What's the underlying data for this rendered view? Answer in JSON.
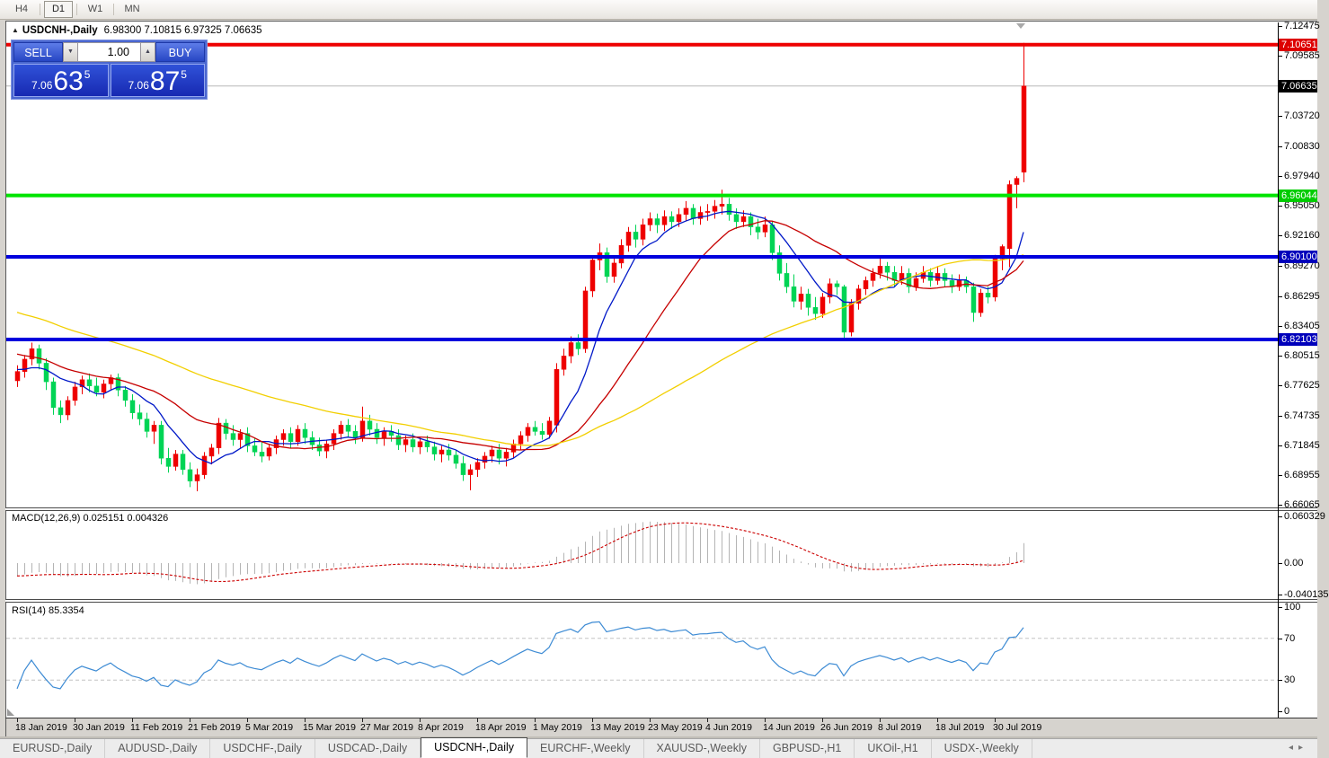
{
  "toolbar": {
    "timeframes": [
      "H4",
      "D1",
      "W1",
      "MN"
    ],
    "active": "D1"
  },
  "chart": {
    "title_symbol": "USDCNH-,Daily",
    "title_ohlc": "6.98300 7.10815 6.97325 7.06635"
  },
  "trade": {
    "sell_label": "SELL",
    "buy_label": "BUY",
    "volume": "1.00",
    "sell_price_small": "7.06",
    "sell_price_big": "63",
    "sell_price_sup": "5",
    "buy_price_small": "7.06",
    "buy_price_big": "87",
    "buy_price_sup": "5"
  },
  "macd": {
    "label": "MACD(12,26,9) 0.025151 0.004326",
    "axis_labels": [
      "0.060329",
      "0.00",
      "-0.040135"
    ]
  },
  "rsi": {
    "label": "RSI(14) 85.3354",
    "axis_labels": [
      "100",
      "70",
      "30",
      "0"
    ]
  },
  "tabs": {
    "items": [
      "EURUSD-,Daily",
      "AUDUSD-,Daily",
      "USDCHF-,Daily",
      "USDCAD-,Daily",
      "USDCNH-,Daily",
      "EURCHF-,Weekly",
      "XAUUSD-,Weekly",
      "GBPUSD-,H1",
      "UKOil-,H1",
      "USDX-,Weekly"
    ],
    "active": "USDCNH-,Daily"
  },
  "chart_data": {
    "type": "candlestick",
    "symbol": "USDCNH-,Daily",
    "bull_color": "#ee0000",
    "bear_color": "#00d455",
    "price_axis_ticks": [
      "7.12475",
      "7.09585",
      "7.03720",
      "7.00830",
      "6.97940",
      "6.95050",
      "6.92160",
      "6.89270",
      "6.86295",
      "6.83405",
      "6.80515",
      "6.77625",
      "6.74735",
      "6.71845",
      "6.68955",
      "6.66065"
    ],
    "price_range_visible": [
      6.6575,
      7.128
    ],
    "current_price": 7.06635,
    "hlines": [
      {
        "price": 7.10651,
        "color": "#ee0000",
        "label": "7.10651",
        "badge_bg": "#dd0000"
      },
      {
        "price": 6.96044,
        "color": "#00e400",
        "label": "6.96044",
        "badge_bg": "#00cc00"
      },
      {
        "price": 6.901,
        "color": "#0000dd",
        "label": "6.90100",
        "badge_bg": "#0000bb"
      },
      {
        "price": 6.82103,
        "color": "#0000dd",
        "label": "6.82103",
        "badge_bg": "#0000bb"
      }
    ],
    "current_price_badge_bg": "#000000",
    "moving_averages": [
      {
        "period": 8,
        "color": "#0018c8"
      },
      {
        "period": 21,
        "color": "#c60000"
      },
      {
        "period": 55,
        "color": "#f2cf00"
      }
    ],
    "x_tick_labels": [
      "18 Jan 2019",
      "30 Jan 2019",
      "11 Feb 2019",
      "21 Feb 2019",
      "5 Mar 2019",
      "15 Mar 2019",
      "27 Mar 2019",
      "8 Apr 2019",
      "18 Apr 2019",
      "1 May 2019",
      "13 May 2019",
      "23 May 2019",
      "4 Jun 2019",
      "14 Jun 2019",
      "26 Jun 2019",
      "8 Jul 2019",
      "18 Jul 2019",
      "30 Jul 2019"
    ],
    "x_tick_interval": 8,
    "macd_panel": {
      "params": "12,26,9",
      "current_main": 0.025151,
      "current_signal": 0.004326,
      "axis_max": 0.060329,
      "axis_min": -0.040135,
      "hist_color": "#b4b4b4",
      "signal_color": "#cc0000"
    },
    "rsi_panel": {
      "period": 14,
      "current_value": 85.3354,
      "levels": [
        70,
        30
      ],
      "line_color": "#3d8bd4",
      "axis": [
        100,
        70,
        30,
        0
      ]
    },
    "candles": [
      [
        6.781,
        6.796,
        6.775,
        6.79
      ],
      [
        6.79,
        6.806,
        6.784,
        6.802
      ],
      [
        6.802,
        6.818,
        6.796,
        6.812
      ],
      [
        6.812,
        6.816,
        6.792,
        6.798
      ],
      [
        6.798,
        6.803,
        6.772,
        6.78
      ],
      [
        6.78,
        6.784,
        6.748,
        6.755
      ],
      [
        6.755,
        6.762,
        6.74,
        6.748
      ],
      [
        6.748,
        6.766,
        6.743,
        6.762
      ],
      [
        6.762,
        6.78,
        6.757,
        6.775
      ],
      [
        6.775,
        6.786,
        6.768,
        6.782
      ],
      [
        6.782,
        6.788,
        6.77,
        6.776
      ],
      [
        6.776,
        6.784,
        6.766,
        6.77
      ],
      [
        6.77,
        6.782,
        6.764,
        6.778
      ],
      [
        6.778,
        6.787,
        6.772,
        6.784
      ],
      [
        6.784,
        6.788,
        6.766,
        6.772
      ],
      [
        6.772,
        6.776,
        6.756,
        6.762
      ],
      [
        6.762,
        6.768,
        6.744,
        6.75
      ],
      [
        6.75,
        6.758,
        6.738,
        6.744
      ],
      [
        6.744,
        6.75,
        6.726,
        6.732
      ],
      [
        6.732,
        6.742,
        6.72,
        6.738
      ],
      [
        6.738,
        6.742,
        6.7,
        6.706
      ],
      [
        6.706,
        6.716,
        6.692,
        6.698
      ],
      [
        6.698,
        6.714,
        6.694,
        6.71
      ],
      [
        6.71,
        6.714,
        6.69,
        6.695
      ],
      [
        6.695,
        6.702,
        6.678,
        6.684
      ],
      [
        6.684,
        6.696,
        6.674,
        6.69
      ],
      [
        6.69,
        6.712,
        6.686,
        6.708
      ],
      [
        6.708,
        6.72,
        6.7,
        6.716
      ],
      [
        6.716,
        6.745,
        6.71,
        6.74
      ],
      [
        6.74,
        6.744,
        6.724,
        6.73
      ],
      [
        6.73,
        6.738,
        6.718,
        6.724
      ],
      [
        6.724,
        6.734,
        6.716,
        6.73
      ],
      [
        6.73,
        6.736,
        6.712,
        6.718
      ],
      [
        6.718,
        6.726,
        6.708,
        6.712
      ],
      [
        6.712,
        6.722,
        6.702,
        6.708
      ],
      [
        6.708,
        6.72,
        6.704,
        6.716
      ],
      [
        6.716,
        6.728,
        6.71,
        6.724
      ],
      [
        6.724,
        6.734,
        6.718,
        6.73
      ],
      [
        6.73,
        6.736,
        6.716,
        6.722
      ],
      [
        6.722,
        6.738,
        6.718,
        6.734
      ],
      [
        6.734,
        6.74,
        6.72,
        6.726
      ],
      [
        6.726,
        6.732,
        6.714,
        6.719
      ],
      [
        6.719,
        6.726,
        6.708,
        6.713
      ],
      [
        6.713,
        6.724,
        6.706,
        6.72
      ],
      [
        6.72,
        6.734,
        6.714,
        6.73
      ],
      [
        6.73,
        6.742,
        6.724,
        6.738
      ],
      [
        6.738,
        6.744,
        6.726,
        6.732
      ],
      [
        6.732,
        6.738,
        6.72,
        6.726
      ],
      [
        6.726,
        6.756,
        6.722,
        6.742
      ],
      [
        6.742,
        6.748,
        6.728,
        6.734
      ],
      [
        6.734,
        6.74,
        6.72,
        6.726
      ],
      [
        6.726,
        6.736,
        6.718,
        6.732
      ],
      [
        6.732,
        6.738,
        6.722,
        6.728
      ],
      [
        6.728,
        6.734,
        6.714,
        6.719
      ],
      [
        6.719,
        6.728,
        6.712,
        6.724
      ],
      [
        6.724,
        6.73,
        6.712,
        6.717
      ],
      [
        6.717,
        6.726,
        6.71,
        6.722
      ],
      [
        6.722,
        6.728,
        6.712,
        6.717
      ],
      [
        6.717,
        6.722,
        6.704,
        6.71
      ],
      [
        6.71,
        6.718,
        6.702,
        6.714
      ],
      [
        6.714,
        6.72,
        6.704,
        6.709
      ],
      [
        6.709,
        6.714,
        6.696,
        6.701
      ],
      [
        6.701,
        6.708,
        6.684,
        6.69
      ],
      [
        6.69,
        6.7,
        6.675,
        6.695
      ],
      [
        6.695,
        6.706,
        6.688,
        6.702
      ],
      [
        6.702,
        6.712,
        6.696,
        6.708
      ],
      [
        6.708,
        6.718,
        6.702,
        6.714
      ],
      [
        6.714,
        6.72,
        6.7,
        6.706
      ],
      [
        6.706,
        6.716,
        6.698,
        6.712
      ],
      [
        6.712,
        6.724,
        6.706,
        6.72
      ],
      [
        6.72,
        6.732,
        6.714,
        6.728
      ],
      [
        6.728,
        6.74,
        6.722,
        6.736
      ],
      [
        6.736,
        6.742,
        6.728,
        6.732
      ],
      [
        6.732,
        6.74,
        6.724,
        6.729
      ],
      [
        6.729,
        6.746,
        6.725,
        6.742
      ],
      [
        6.738,
        6.798,
        6.731,
        6.792
      ],
      [
        6.792,
        6.812,
        6.786,
        6.805
      ],
      [
        6.805,
        6.824,
        6.798,
        6.818
      ],
      [
        6.818,
        6.826,
        6.806,
        6.812
      ],
      [
        6.812,
        6.872,
        6.808,
        6.868
      ],
      [
        6.868,
        6.902,
        6.862,
        6.898
      ],
      [
        6.898,
        6.914,
        6.888,
        6.905
      ],
      [
        6.905,
        6.91,
        6.876,
        6.882
      ],
      [
        6.882,
        6.9,
        6.876,
        6.895
      ],
      [
        6.895,
        6.918,
        6.89,
        6.912
      ],
      [
        6.912,
        6.93,
        6.906,
        6.925
      ],
      [
        6.925,
        6.932,
        6.91,
        6.918
      ],
      [
        6.918,
        6.938,
        6.912,
        6.932
      ],
      [
        6.932,
        6.944,
        6.926,
        6.938
      ],
      [
        6.938,
        6.943,
        6.924,
        6.932
      ],
      [
        6.932,
        6.946,
        6.926,
        6.94
      ],
      [
        6.94,
        6.945,
        6.928,
        6.935
      ],
      [
        6.935,
        6.948,
        6.93,
        6.942
      ],
      [
        6.942,
        6.955,
        6.936,
        6.948
      ],
      [
        6.948,
        6.952,
        6.932,
        6.938
      ],
      [
        6.938,
        6.95,
        6.932,
        6.944
      ],
      [
        6.944,
        6.952,
        6.936,
        6.945
      ],
      [
        6.945,
        6.956,
        6.938,
        6.95
      ],
      [
        6.95,
        6.966,
        6.942,
        6.952
      ],
      [
        6.952,
        6.958,
        6.936,
        6.942
      ],
      [
        6.942,
        6.948,
        6.928,
        6.935
      ],
      [
        6.935,
        6.946,
        6.93,
        6.94
      ],
      [
        6.94,
        6.944,
        6.922,
        6.93
      ],
      [
        6.93,
        6.938,
        6.918,
        6.925
      ],
      [
        6.925,
        6.94,
        6.92,
        6.932
      ],
      [
        6.932,
        6.936,
        6.898,
        6.905
      ],
      [
        6.905,
        6.912,
        6.878,
        6.885
      ],
      [
        6.885,
        6.895,
        6.866,
        6.872
      ],
      [
        6.872,
        6.884,
        6.852,
        6.858
      ],
      [
        6.858,
        6.872,
        6.85,
        6.865
      ],
      [
        6.865,
        6.87,
        6.844,
        6.852
      ],
      [
        6.852,
        6.862,
        6.84,
        6.846
      ],
      [
        6.846,
        6.866,
        6.842,
        6.862
      ],
      [
        6.862,
        6.88,
        6.856,
        6.875
      ],
      [
        6.875,
        6.878,
        6.864,
        6.872
      ],
      [
        6.872,
        6.874,
        6.8215,
        6.828
      ],
      [
        6.828,
        6.86,
        6.824,
        6.856
      ],
      [
        6.856,
        6.874,
        6.85,
        6.87
      ],
      [
        6.87,
        6.882,
        6.864,
        6.878
      ],
      [
        6.878,
        6.89,
        6.872,
        6.885
      ],
      [
        6.885,
        6.902,
        6.88,
        6.892
      ],
      [
        6.892,
        6.896,
        6.878,
        6.886
      ],
      [
        6.886,
        6.892,
        6.872,
        6.878
      ],
      [
        6.878,
        6.892,
        6.874,
        6.885
      ],
      [
        6.885,
        6.89,
        6.866,
        6.872
      ],
      [
        6.872,
        6.886,
        6.868,
        6.88
      ],
      [
        6.88,
        6.892,
        6.876,
        6.886
      ],
      [
        6.886,
        6.89,
        6.872,
        6.878
      ],
      [
        6.878,
        6.892,
        6.874,
        6.885
      ],
      [
        6.885,
        6.89,
        6.872,
        6.878
      ],
      [
        6.878,
        6.884,
        6.866,
        6.872
      ],
      [
        6.872,
        6.884,
        6.868,
        6.878
      ],
      [
        6.878,
        6.882,
        6.866,
        6.872
      ],
      [
        6.872,
        6.876,
        6.838,
        6.847
      ],
      [
        6.847,
        6.87,
        6.843,
        6.866
      ],
      [
        6.866,
        6.872,
        6.856,
        6.862
      ],
      [
        6.862,
        6.903,
        6.858,
        6.899
      ],
      [
        6.899,
        6.913,
        6.888,
        6.911
      ],
      [
        6.909,
        6.975,
        6.891,
        6.971
      ],
      [
        6.971,
        6.979,
        6.948,
        6.977
      ],
      [
        6.983,
        7.10815,
        6.97325,
        7.06635
      ]
    ]
  }
}
